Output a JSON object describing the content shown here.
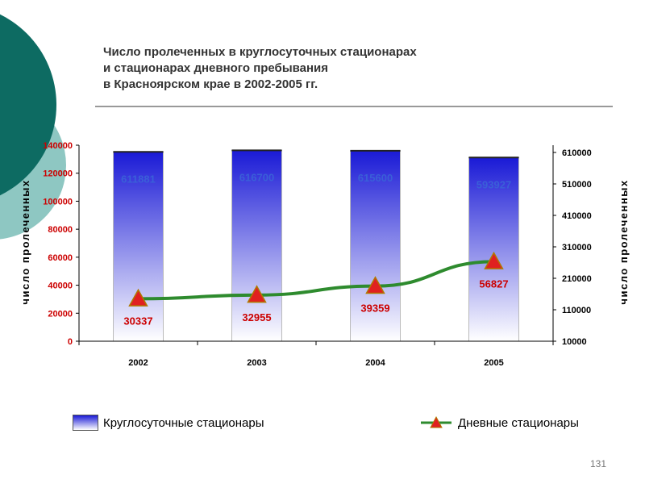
{
  "title_lines": [
    "Число пролеченных в круглосуточных стационарах",
    "и стационарах дневного пребывания",
    "в Красноярском крае в 2002-2005 гг."
  ],
  "slide_number": "131",
  "chart_data": {
    "type": "bar",
    "categories": [
      "2002",
      "2003",
      "2004",
      "2005"
    ],
    "series": [
      {
        "name": "Круглосуточные стационары",
        "type": "bar",
        "axis": "right",
        "values": [
          611881,
          616700,
          615600,
          593927
        ],
        "labels": [
          "611881",
          "616700",
          "615600",
          "593927"
        ],
        "color": "#1a1ad6"
      },
      {
        "name": "Дневные стационары",
        "type": "line",
        "axis": "left",
        "values": [
          30337,
          32955,
          39359,
          56827
        ],
        "labels": [
          "30337",
          "32955",
          "39359",
          "56827"
        ],
        "color": "#2e8b2e",
        "marker_color": "#e02020"
      }
    ],
    "y_left": {
      "label": "число пролеченных",
      "ylim": [
        0,
        140000
      ],
      "ticks": [
        "0",
        "20000",
        "40000",
        "60000",
        "80000",
        "100000",
        "120000",
        "140000"
      ],
      "tick_color": "#cc0000"
    },
    "y_right": {
      "label": "число пролеченных",
      "ylim": [
        10000,
        610000
      ],
      "ticks": [
        "10000",
        "110000",
        "210000",
        "310000",
        "410000",
        "510000",
        "610000"
      ]
    },
    "grid": false,
    "legend": "bottom"
  }
}
